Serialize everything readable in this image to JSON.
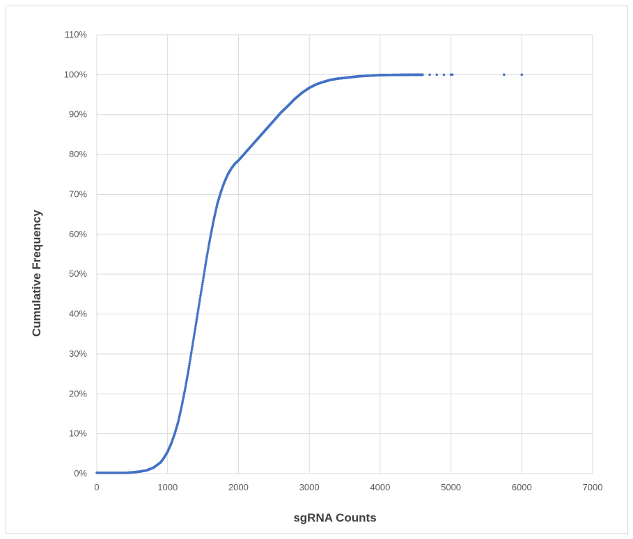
{
  "chart_data": {
    "type": "scatter",
    "title": "",
    "xlabel": "sgRNA Counts",
    "ylabel": "Cumulative Frequency",
    "xlim": [
      0,
      7000
    ],
    "ylim": [
      0,
      1.1
    ],
    "x_ticks": [
      "0",
      "1000",
      "2000",
      "3000",
      "4000",
      "5000",
      "6000",
      "7000"
    ],
    "y_ticks": [
      "0%",
      "10%",
      "20%",
      "30%",
      "40%",
      "50%",
      "60%",
      "70%",
      "80%",
      "90%",
      "100%",
      "110%"
    ],
    "grid": true,
    "legend": "none",
    "series_color": "#4472c4",
    "series": [
      {
        "x": [
          0,
          100,
          200,
          300,
          400,
          500,
          600,
          700,
          800,
          900,
          950,
          1000,
          1050,
          1100,
          1150,
          1200,
          1250,
          1300,
          1350,
          1400,
          1450,
          1500,
          1550,
          1600,
          1650,
          1700,
          1750,
          1800,
          1850,
          1900,
          1950,
          2000,
          2100,
          2200,
          2300,
          2400,
          2500,
          2600,
          2700,
          2800,
          2900,
          3000,
          3100,
          3200,
          3300,
          3400,
          3500,
          3600,
          3700,
          3800,
          3900,
          4000,
          4100,
          4200,
          4300,
          4400,
          4500,
          4600,
          4700,
          4800,
          4900,
          5000,
          5020,
          5750,
          6000
        ],
        "y": [
          0.002,
          0.002,
          0.002,
          0.002,
          0.002,
          0.003,
          0.005,
          0.008,
          0.015,
          0.028,
          0.04,
          0.055,
          0.075,
          0.1,
          0.13,
          0.17,
          0.215,
          0.265,
          0.32,
          0.375,
          0.43,
          0.485,
          0.54,
          0.59,
          0.635,
          0.675,
          0.705,
          0.73,
          0.75,
          0.765,
          0.777,
          0.785,
          0.805,
          0.825,
          0.845,
          0.865,
          0.885,
          0.905,
          0.922,
          0.94,
          0.955,
          0.967,
          0.976,
          0.982,
          0.987,
          0.99,
          0.992,
          0.994,
          0.996,
          0.997,
          0.998,
          0.999,
          0.9992,
          0.9994,
          0.9996,
          0.9997,
          0.9998,
          0.9998,
          0.9999,
          0.9999,
          0.9999,
          1.0,
          1.0,
          1.0,
          1.0
        ]
      }
    ]
  }
}
